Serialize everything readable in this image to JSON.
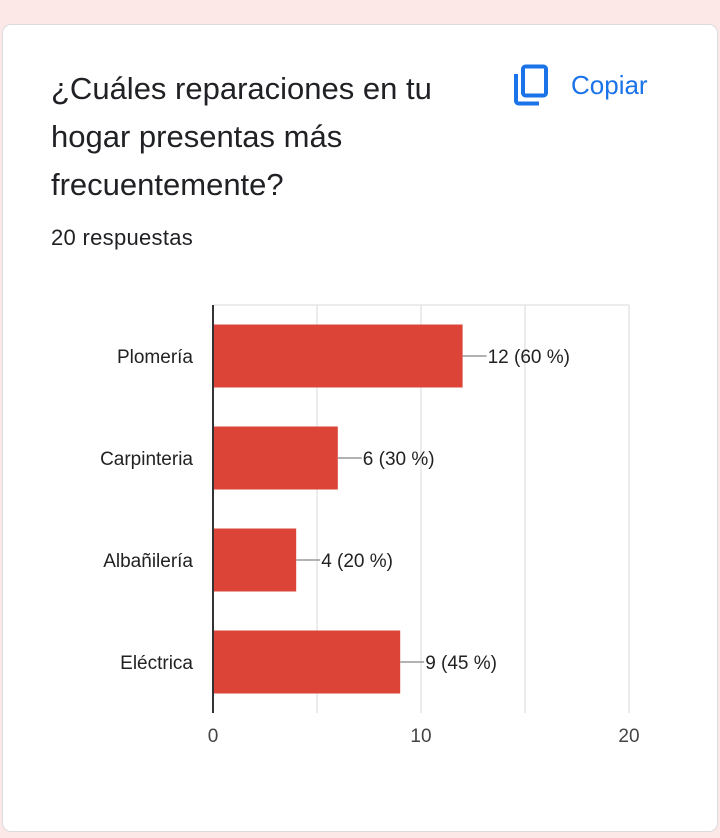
{
  "question": {
    "title": "¿Cuáles reparaciones en tu hogar presentas más frecuentemente?",
    "responses": "20 respuestas"
  },
  "toolbar": {
    "copy_label": "Copiar",
    "copy_icon": "copy-icon"
  },
  "colors": {
    "bar": "#db4437",
    "accent": "#1a73e8",
    "background": "#fce8e6"
  },
  "chart_data": {
    "type": "bar",
    "orientation": "horizontal",
    "categories": [
      "Plomería",
      "Carpinteria",
      "Albañilería",
      "Eléctrica"
    ],
    "values": [
      12,
      6,
      4,
      9
    ],
    "data_labels": [
      "12 (60 %)",
      "6 (30 %)",
      "4 (20 %)",
      "9 (45 %)"
    ],
    "xlim": [
      0,
      20
    ],
    "xticks": [
      0,
      10,
      20
    ],
    "grid": true
  }
}
